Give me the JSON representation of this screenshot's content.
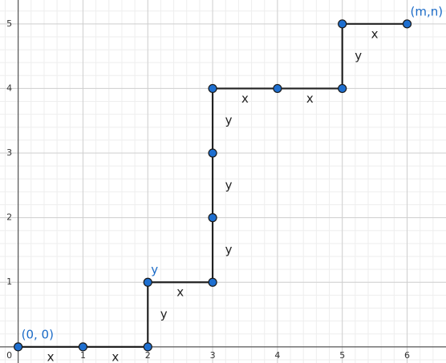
{
  "chart_data": {
    "type": "line",
    "x": [
      0,
      1,
      2,
      2,
      3,
      3,
      3,
      3,
      4,
      5,
      5,
      6
    ],
    "series": [
      {
        "color": "#222222",
        "point_color": "#1e6fd0",
        "values": [
          0,
          0,
          0,
          1,
          1,
          2,
          3,
          4,
          4,
          4,
          5,
          5
        ]
      }
    ],
    "point_labels": [
      "(0, 0)",
      null,
      null,
      "y",
      null,
      null,
      null,
      null,
      null,
      null,
      null,
      "(m,n)"
    ],
    "segment_labels": [
      "x",
      "x",
      "y",
      "x",
      "y",
      "y",
      "y",
      "x",
      "x",
      "y",
      "x"
    ],
    "xlim": [
      -0.28,
      6.6
    ],
    "ylim": [
      -0.25,
      5.37
    ],
    "xticks": [
      0,
      1,
      2,
      3,
      4,
      5,
      6
    ],
    "yticks": [
      1,
      2,
      3,
      4,
      5
    ],
    "grid": true
  }
}
